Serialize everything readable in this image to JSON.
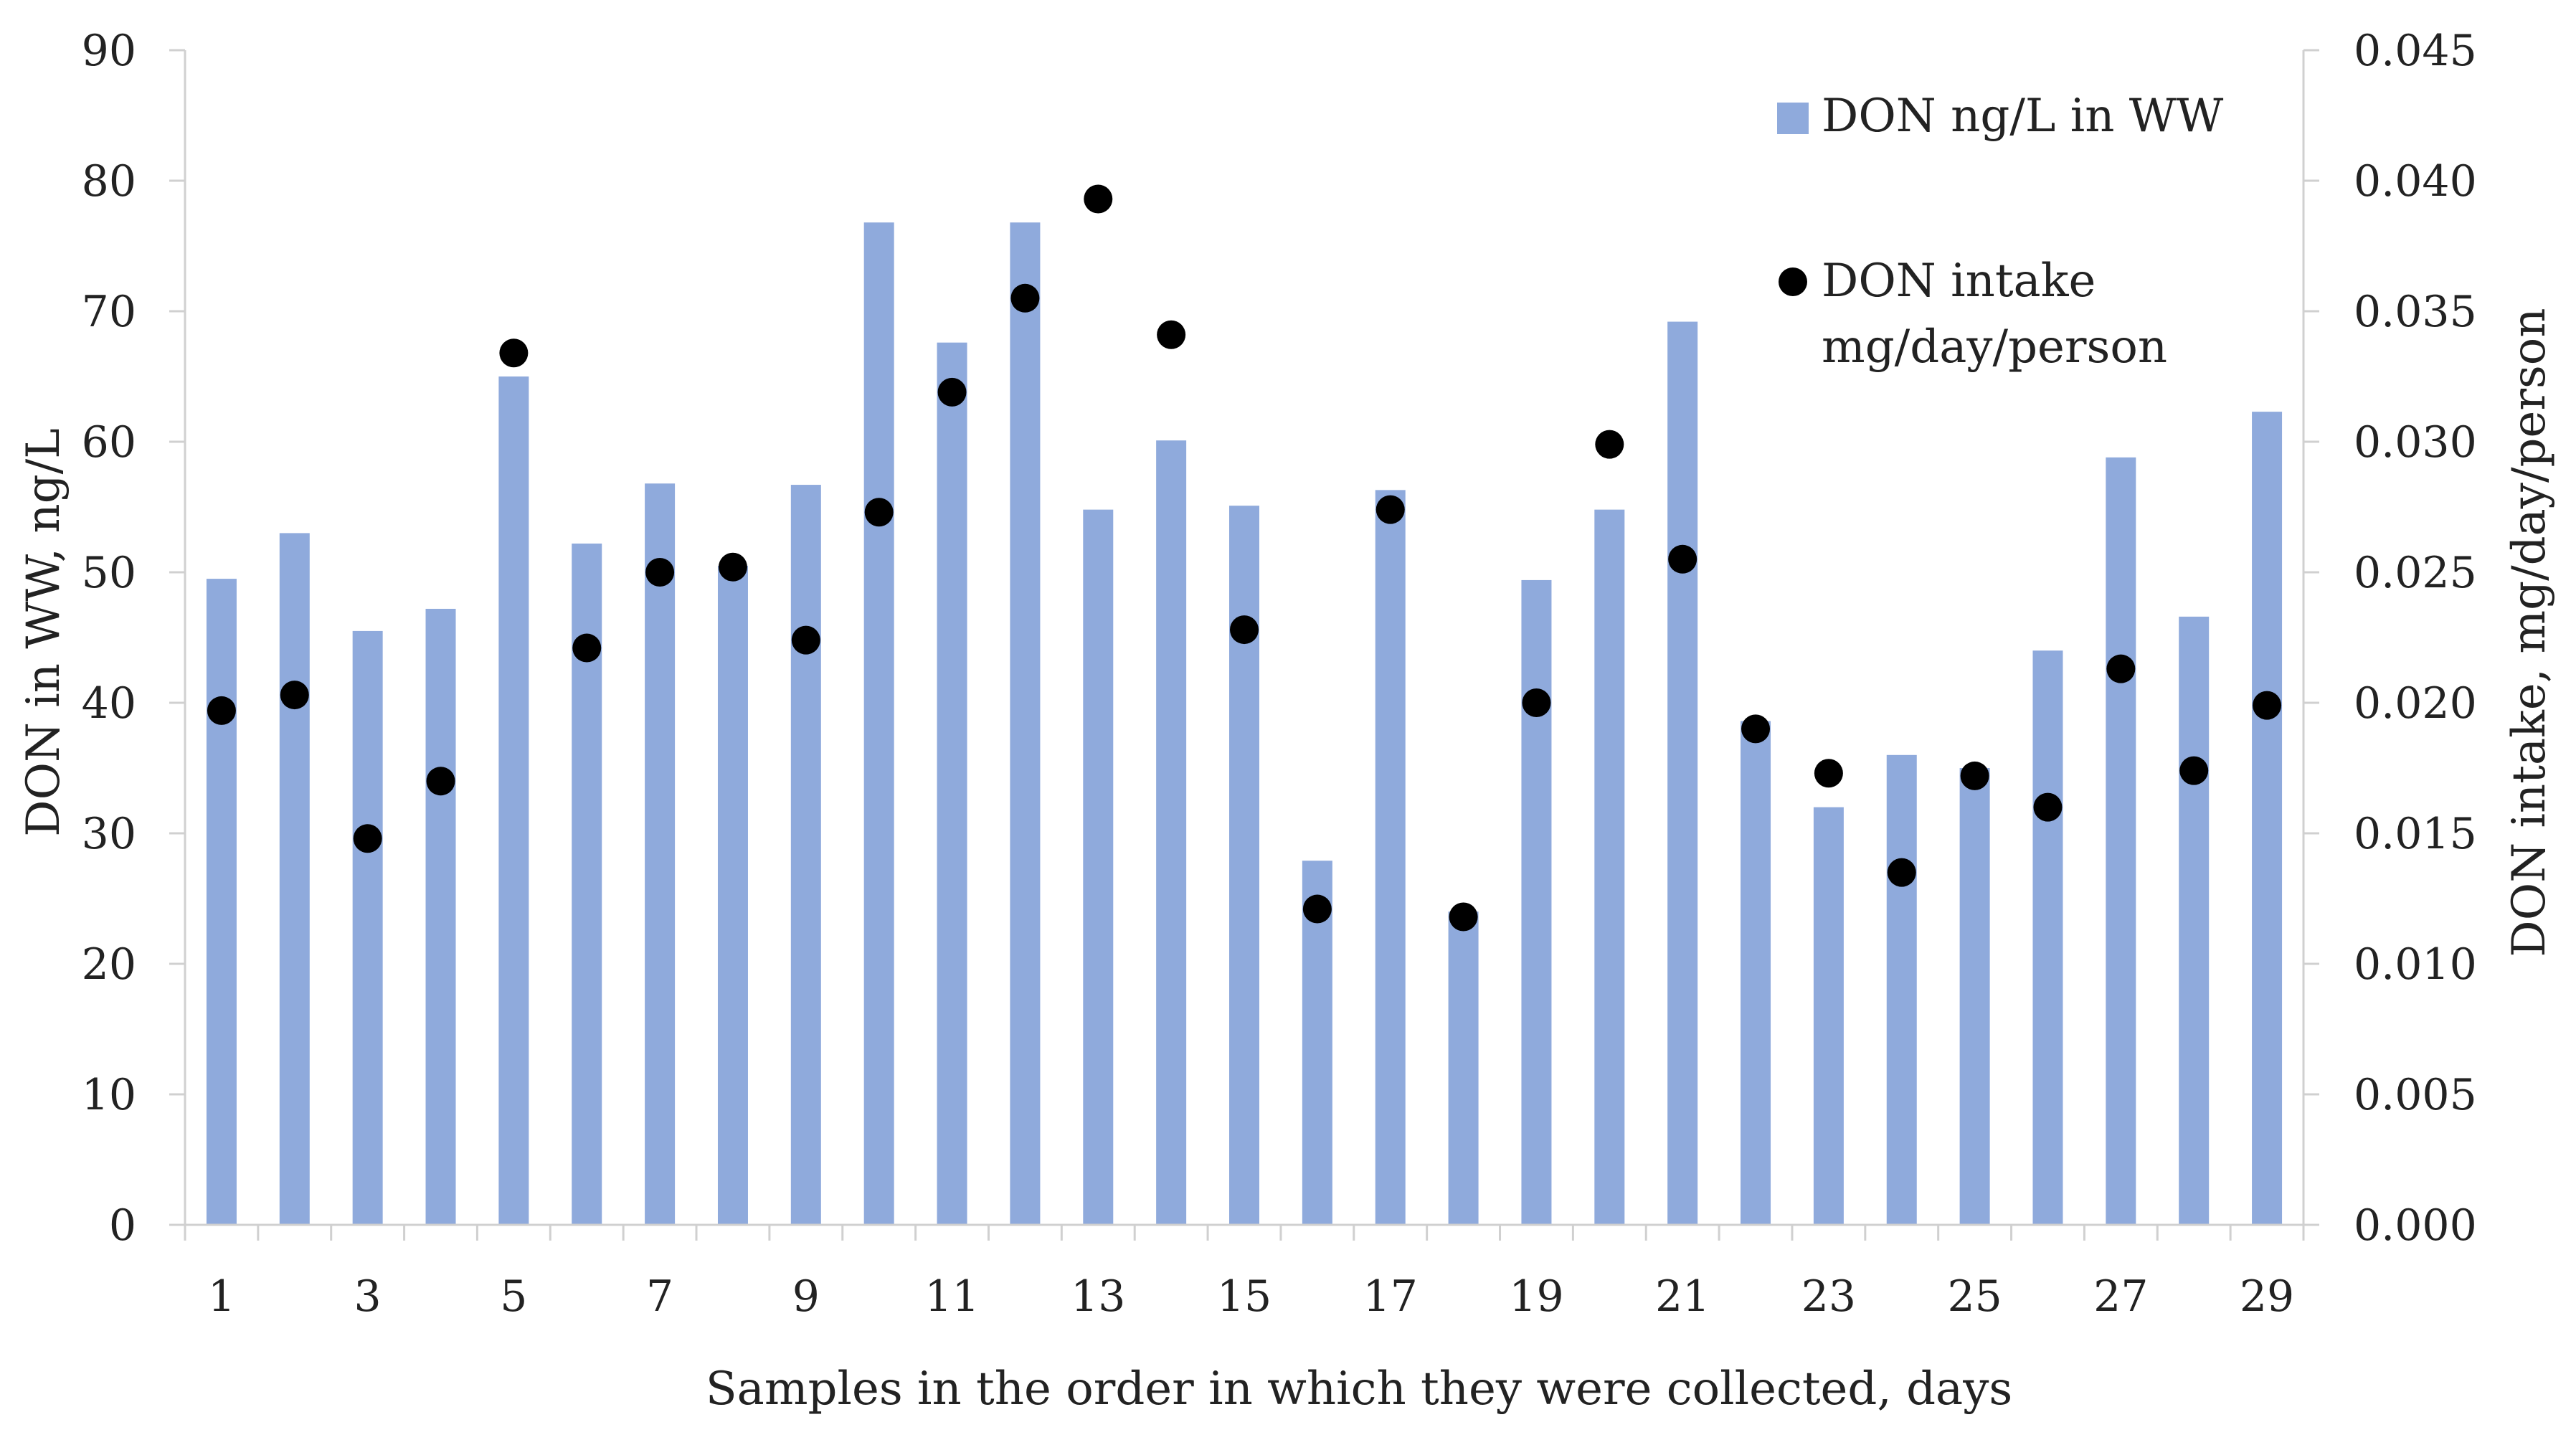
{
  "chart_data": {
    "type": "bar+scatter",
    "title": "",
    "xlabel": "Samples in the order in which they were collected, days",
    "ylabel_left": "DON in WW, ng/L",
    "ylabel_right": "DON intake, mg/day/person",
    "ylim_left": [
      0,
      90
    ],
    "ylim_right": [
      0,
      0.045
    ],
    "yticks_left": [
      "0",
      "10",
      "20",
      "30",
      "40",
      "50",
      "60",
      "70",
      "80",
      "90"
    ],
    "yticks_right": [
      "0.000",
      "0.005",
      "0.010",
      "0.015",
      "0.020",
      "0.025",
      "0.030",
      "0.035",
      "0.040",
      "0.045"
    ],
    "grid": false,
    "legend_position": "top-right",
    "categories": [
      1,
      2,
      3,
      4,
      5,
      6,
      7,
      8,
      9,
      10,
      11,
      12,
      13,
      14,
      15,
      16,
      17,
      18,
      19,
      20,
      21,
      22,
      23,
      24,
      25,
      26,
      27,
      28,
      29
    ],
    "xtick_labels": [
      "1",
      "3",
      "5",
      "7",
      "9",
      "11",
      "13",
      "15",
      "17",
      "19",
      "21",
      "23",
      "25",
      "27",
      "29"
    ],
    "series": [
      {
        "name": "DON ng/L in WW",
        "type": "bar",
        "axis": "left",
        "color": "#8faadc",
        "values": [
          49.5,
          53,
          45.5,
          47.2,
          65,
          52.2,
          56.8,
          50.5,
          56.7,
          76.8,
          67.6,
          76.8,
          54.8,
          60.1,
          55.1,
          27.9,
          56.3,
          24,
          49.4,
          54.8,
          69.2,
          38.6,
          32,
          36,
          35,
          44,
          58.8,
          46.6,
          62.3
        ]
      },
      {
        "name": "DON intake mg/day/person",
        "type": "scatter",
        "axis": "right",
        "color": "#000000",
        "values": [
          0.0197,
          0.0203,
          0.0148,
          0.017,
          0.0334,
          0.0221,
          0.025,
          0.0252,
          0.0224,
          0.0273,
          0.0319,
          0.0355,
          0.0393,
          0.0341,
          0.0228,
          0.0121,
          0.0274,
          0.0118,
          0.02,
          0.0299,
          0.0255,
          0.019,
          0.0173,
          0.0135,
          0.0172,
          0.016,
          0.0213,
          0.0174,
          0.0199
        ]
      }
    ],
    "legend": [
      {
        "lines": [
          "DON ng/L in WW"
        ]
      },
      {
        "lines": [
          "DON intake",
          "mg/day/person"
        ]
      }
    ]
  }
}
